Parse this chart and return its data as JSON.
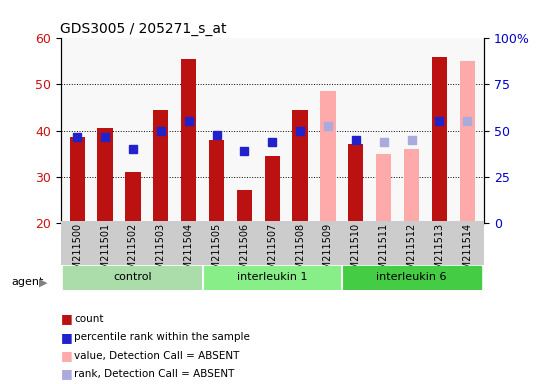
{
  "title": "GDS3005 / 205271_s_at",
  "samples": [
    "GSM211500",
    "GSM211501",
    "GSM211502",
    "GSM211503",
    "GSM211504",
    "GSM211505",
    "GSM211506",
    "GSM211507",
    "GSM211508",
    "GSM211509",
    "GSM211510",
    "GSM211511",
    "GSM211512",
    "GSM211513",
    "GSM211514"
  ],
  "bar_values": [
    38.5,
    40.5,
    31.0,
    44.5,
    55.5,
    38.0,
    27.0,
    34.5,
    44.5,
    48.5,
    37.0,
    35.0,
    36.0,
    56.0,
    55.0
  ],
  "bar_absent": [
    null,
    null,
    null,
    null,
    null,
    null,
    null,
    null,
    null,
    48.5,
    null,
    35.0,
    36.0,
    null,
    55.0
  ],
  "rank_values": [
    38.5,
    38.5,
    36.0,
    40.0,
    42.0,
    39.0,
    35.5,
    37.5,
    40.0,
    41.0,
    38.0,
    37.5,
    38.0,
    42.0,
    42.0
  ],
  "rank_absent": [
    null,
    null,
    null,
    null,
    null,
    null,
    null,
    null,
    null,
    41.0,
    null,
    37.5,
    38.0,
    null,
    42.0
  ],
  "groups": [
    {
      "name": "control",
      "start": 0,
      "end": 5,
      "color": "#aaddaa"
    },
    {
      "name": "interleukin 1",
      "start": 5,
      "end": 10,
      "color": "#88ee88"
    },
    {
      "name": "interleukin 6",
      "start": 10,
      "end": 15,
      "color": "#44cc44"
    }
  ],
  "ylim": [
    20,
    60
  ],
  "ylim2": [
    0,
    100
  ],
  "yticks": [
    20,
    30,
    40,
    50,
    60
  ],
  "yticks2": [
    0,
    25,
    50,
    75,
    100
  ],
  "bar_color": "#bb1111",
  "bar_absent_color": "#ffaaaa",
  "rank_color": "#2222cc",
  "rank_absent_color": "#aaaadd",
  "bg_color": "#ffffff",
  "tick_label_color_left": "#cc1111",
  "tick_label_color_right": "#0000cc",
  "grid_color": "#000000",
  "legend_items": [
    {
      "label": "count",
      "color": "#bb1111",
      "marker": "s"
    },
    {
      "label": "percentile rank within the sample",
      "color": "#2222cc",
      "marker": "s"
    },
    {
      "label": "value, Detection Call = ABSENT",
      "color": "#ffaaaa",
      "marker": "s"
    },
    {
      "label": "rank, Detection Call = ABSENT",
      "color": "#aaaadd",
      "marker": "s"
    }
  ],
  "bar_width": 0.55,
  "rank_marker_size": 6
}
